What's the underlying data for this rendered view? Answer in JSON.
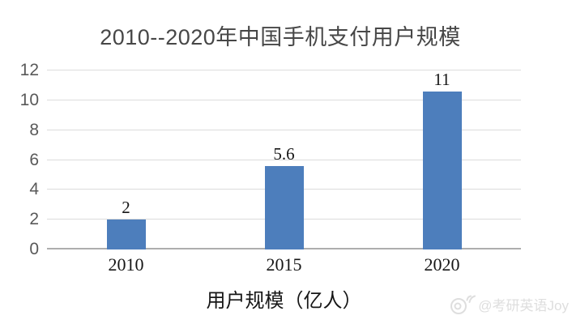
{
  "chart_data": {
    "type": "bar",
    "title": "2010--2020年中国手机支付用户规模",
    "categories": [
      "2010",
      "2015",
      "2020"
    ],
    "values": [
      2,
      5.6,
      11
    ],
    "value_labels": [
      "2",
      "5.6",
      "11"
    ],
    "xlabel": "用户规模（亿人）",
    "ylabel": "",
    "ylim": [
      0,
      12
    ],
    "yticks": [
      0,
      2,
      4,
      6,
      8,
      10,
      12
    ],
    "grid": true,
    "legend": false,
    "bar_color": "#4d7ebc",
    "gridline_color": "#dcdcdc",
    "axis_line_color": "#aeaeae",
    "tick_label_color": "#595959",
    "label_color": "#161616",
    "title_color": "#474747"
  },
  "watermark": {
    "icon": "weibo-icon",
    "text": "@考研英语Joy",
    "color": "#dedede"
  }
}
